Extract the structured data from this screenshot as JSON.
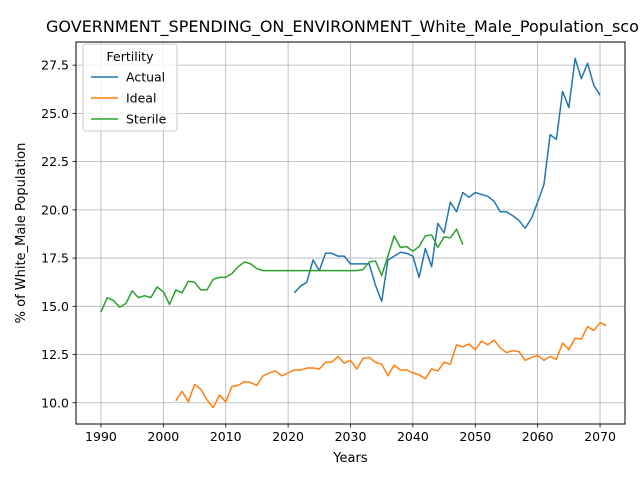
{
  "chart_data": {
    "type": "line",
    "title": "GOVERNMENT_SPENDING_ON_ENVIRONMENT_White_Male_Population_score",
    "xlabel": "Years",
    "ylabel": "% of White_Male Population",
    "xlim": [
      1986,
      2074
    ],
    "ylim": [
      8.9,
      28.7
    ],
    "xticks": [
      1990,
      2000,
      2010,
      2020,
      2030,
      2040,
      2050,
      2060,
      2070
    ],
    "yticks": [
      10.0,
      12.5,
      15.0,
      17.5,
      20.0,
      22.5,
      25.0,
      27.5
    ],
    "grid": true,
    "legend": {
      "title": "Fertility",
      "location": "upper-left"
    },
    "series": [
      {
        "name": "Actual",
        "color": "#1f77b4",
        "points": [
          [
            2021,
            15.7
          ],
          [
            2022,
            16.05
          ],
          [
            2023,
            16.25
          ],
          [
            2024,
            17.4
          ],
          [
            2025,
            16.85
          ],
          [
            2026,
            17.75
          ],
          [
            2027,
            17.75
          ],
          [
            2028,
            17.6
          ],
          [
            2029,
            17.6
          ],
          [
            2030,
            17.2
          ],
          [
            2031,
            17.2
          ],
          [
            2032,
            17.2
          ],
          [
            2033,
            17.2
          ],
          [
            2034,
            16.1
          ],
          [
            2035,
            15.25
          ],
          [
            2036,
            17.4
          ],
          [
            2037,
            17.6
          ],
          [
            2038,
            17.8
          ],
          [
            2039,
            17.75
          ],
          [
            2040,
            17.6
          ],
          [
            2041,
            16.5
          ],
          [
            2042,
            18.0
          ],
          [
            2043,
            17.05
          ],
          [
            2044,
            19.3
          ],
          [
            2045,
            18.8
          ],
          [
            2046,
            20.4
          ],
          [
            2047,
            19.9
          ],
          [
            2048,
            20.9
          ],
          [
            2049,
            20.65
          ],
          [
            2050,
            20.9
          ],
          [
            2051,
            20.8
          ],
          [
            2052,
            20.7
          ],
          [
            2053,
            20.45
          ],
          [
            2054,
            19.9
          ],
          [
            2055,
            19.9
          ],
          [
            2056,
            19.7
          ],
          [
            2057,
            19.45
          ],
          [
            2058,
            19.05
          ],
          [
            2059,
            19.55
          ],
          [
            2060,
            20.4
          ],
          [
            2061,
            21.3
          ],
          [
            2062,
            23.9
          ],
          [
            2063,
            23.65
          ],
          [
            2064,
            26.15
          ],
          [
            2065,
            25.3
          ],
          [
            2066,
            27.85
          ],
          [
            2067,
            26.8
          ],
          [
            2068,
            27.6
          ],
          [
            2069,
            26.45
          ],
          [
            2070,
            25.95
          ]
        ]
      },
      {
        "name": "Ideal",
        "color": "#ff7f0e",
        "points": [
          [
            2002,
            10.1
          ],
          [
            2003,
            10.6
          ],
          [
            2004,
            10.05
          ],
          [
            2005,
            10.95
          ],
          [
            2006,
            10.7
          ],
          [
            2007,
            10.15
          ],
          [
            2008,
            9.75
          ],
          [
            2009,
            10.4
          ],
          [
            2010,
            10.05
          ],
          [
            2011,
            10.85
          ],
          [
            2012,
            10.9
          ],
          [
            2013,
            11.1
          ],
          [
            2014,
            11.05
          ],
          [
            2015,
            10.9
          ],
          [
            2016,
            11.4
          ],
          [
            2017,
            11.55
          ],
          [
            2018,
            11.65
          ],
          [
            2019,
            11.4
          ],
          [
            2020,
            11.55
          ],
          [
            2021,
            11.7
          ],
          [
            2022,
            11.7
          ],
          [
            2023,
            11.8
          ],
          [
            2024,
            11.8
          ],
          [
            2025,
            11.75
          ],
          [
            2026,
            12.1
          ],
          [
            2027,
            12.1
          ],
          [
            2028,
            12.4
          ],
          [
            2029,
            12.05
          ],
          [
            2030,
            12.2
          ],
          [
            2031,
            11.75
          ],
          [
            2032,
            12.3
          ],
          [
            2033,
            12.35
          ],
          [
            2034,
            12.1
          ],
          [
            2035,
            12.0
          ],
          [
            2036,
            11.4
          ],
          [
            2037,
            11.95
          ],
          [
            2038,
            11.7
          ],
          [
            2039,
            11.7
          ],
          [
            2040,
            11.55
          ],
          [
            2041,
            11.45
          ],
          [
            2042,
            11.25
          ],
          [
            2043,
            11.75
          ],
          [
            2044,
            11.65
          ],
          [
            2045,
            12.1
          ],
          [
            2046,
            12.0
          ],
          [
            2047,
            13.0
          ],
          [
            2048,
            12.9
          ],
          [
            2049,
            13.05
          ],
          [
            2050,
            12.75
          ],
          [
            2051,
            13.2
          ],
          [
            2052,
            13.0
          ],
          [
            2053,
            13.25
          ],
          [
            2054,
            12.85
          ],
          [
            2055,
            12.6
          ],
          [
            2056,
            12.7
          ],
          [
            2057,
            12.65
          ],
          [
            2058,
            12.2
          ],
          [
            2059,
            12.35
          ],
          [
            2060,
            12.45
          ],
          [
            2061,
            12.2
          ],
          [
            2062,
            12.4
          ],
          [
            2063,
            12.25
          ],
          [
            2064,
            13.1
          ],
          [
            2065,
            12.75
          ],
          [
            2066,
            13.35
          ],
          [
            2067,
            13.3
          ],
          [
            2068,
            13.95
          ],
          [
            2069,
            13.75
          ],
          [
            2070,
            14.15
          ],
          [
            2071,
            14.0
          ]
        ]
      },
      {
        "name": "Sterile",
        "color": "#2ca02c",
        "points": [
          [
            1990,
            14.7
          ],
          [
            1991,
            15.45
          ],
          [
            1992,
            15.3
          ],
          [
            1993,
            14.95
          ],
          [
            1994,
            15.15
          ],
          [
            1995,
            15.8
          ],
          [
            1996,
            15.45
          ],
          [
            1997,
            15.55
          ],
          [
            1998,
            15.45
          ],
          [
            1999,
            16.0
          ],
          [
            2000,
            15.75
          ],
          [
            2001,
            15.1
          ],
          [
            2002,
            15.85
          ],
          [
            2003,
            15.7
          ],
          [
            2004,
            16.3
          ],
          [
            2005,
            16.25
          ],
          [
            2006,
            15.85
          ],
          [
            2007,
            15.85
          ],
          [
            2008,
            16.4
          ],
          [
            2009,
            16.5
          ],
          [
            2010,
            16.5
          ],
          [
            2011,
            16.7
          ],
          [
            2012,
            17.05
          ],
          [
            2013,
            17.3
          ],
          [
            2014,
            17.2
          ],
          [
            2015,
            16.95
          ],
          [
            2016,
            16.85
          ],
          [
            2017,
            16.85
          ],
          [
            2018,
            16.85
          ],
          [
            2019,
            16.85
          ],
          [
            2020,
            16.85
          ],
          [
            2021,
            16.85
          ],
          [
            2022,
            16.85
          ],
          [
            2023,
            16.85
          ],
          [
            2024,
            16.85
          ],
          [
            2025,
            16.85
          ],
          [
            2026,
            16.85
          ],
          [
            2027,
            16.85
          ],
          [
            2028,
            16.85
          ],
          [
            2029,
            16.85
          ],
          [
            2030,
            16.85
          ],
          [
            2031,
            16.85
          ],
          [
            2032,
            16.9
          ],
          [
            2033,
            17.3
          ],
          [
            2034,
            17.35
          ],
          [
            2035,
            16.6
          ],
          [
            2036,
            17.6
          ],
          [
            2037,
            18.65
          ],
          [
            2038,
            18.05
          ],
          [
            2039,
            18.1
          ],
          [
            2040,
            17.85
          ],
          [
            2041,
            18.1
          ],
          [
            2042,
            18.65
          ],
          [
            2043,
            18.7
          ],
          [
            2044,
            18.05
          ],
          [
            2045,
            18.6
          ],
          [
            2046,
            18.55
          ],
          [
            2047,
            19.0
          ],
          [
            2048,
            18.2
          ]
        ]
      }
    ]
  }
}
